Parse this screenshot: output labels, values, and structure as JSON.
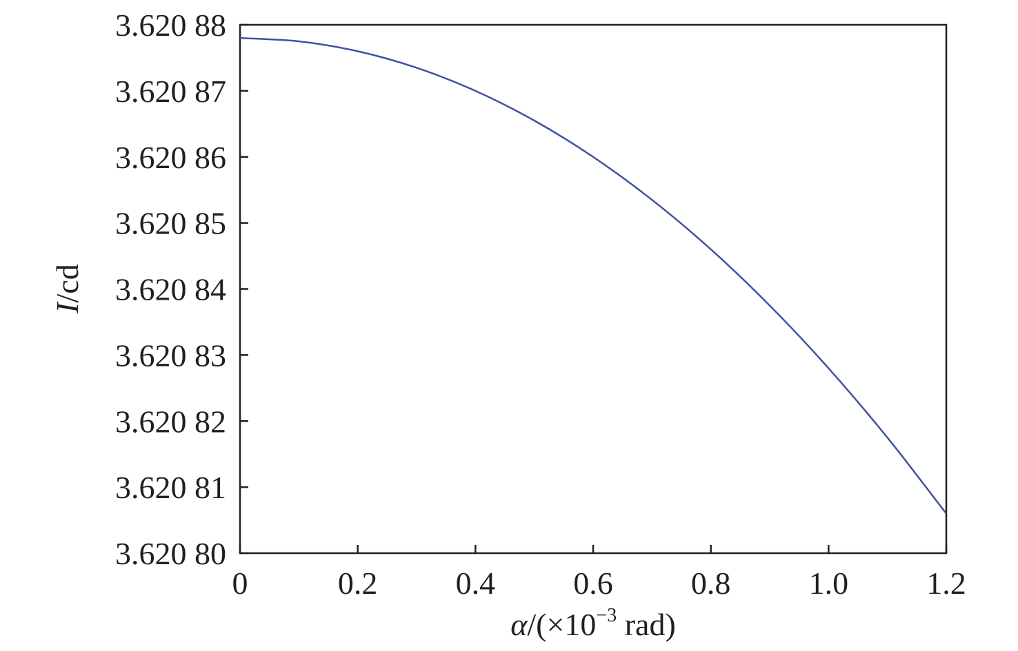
{
  "chart_data": {
    "type": "line",
    "title": "",
    "xlabel": {
      "italic": "α",
      "rest": "/(×10",
      "sup": "−3",
      "tail": " rad)"
    },
    "ylabel": {
      "italic": "I",
      "rest": "/cd"
    },
    "xlim": [
      0,
      1.2
    ],
    "ylim": [
      3.6208,
      3.62088
    ],
    "x_ticks": [
      0,
      0.2,
      0.4,
      0.6,
      0.8,
      1.0,
      1.2
    ],
    "x_tick_labels": [
      "0",
      "0.2",
      "0.4",
      "0.6",
      "0.8",
      "1.0",
      "1.2"
    ],
    "y_ticks": [
      3.6208,
      3.62081,
      3.62082,
      3.62083,
      3.62084,
      3.62085,
      3.62086,
      3.62087,
      3.62088
    ],
    "y_tick_labels": [
      "3.620 80",
      "3.620 81",
      "3.620 82",
      "3.620 83",
      "3.620 84",
      "3.620 85",
      "3.620 86",
      "3.620 87",
      "3.620 88"
    ],
    "grid": false,
    "series": [
      {
        "color": "#3f51a3",
        "x": [
          0,
          0.1,
          0.2,
          0.3,
          0.4,
          0.5,
          0.6,
          0.7,
          0.8,
          0.9,
          1.0,
          1.1,
          1.2
        ],
        "y": [
          3.620878,
          3.6208775,
          3.620876,
          3.6208735,
          3.62087,
          3.6208655,
          3.62086,
          3.6208535,
          3.620846,
          3.6208375,
          3.620828,
          3.6208175,
          3.620806
        ]
      }
    ]
  }
}
